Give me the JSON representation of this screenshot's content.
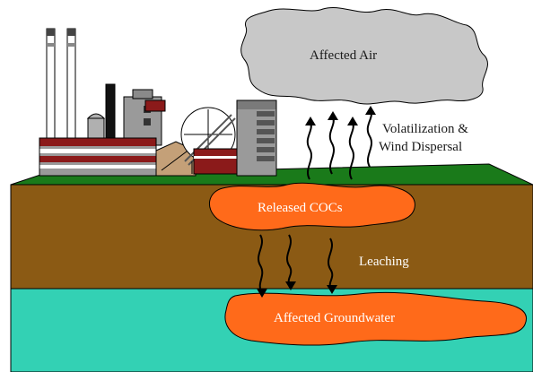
{
  "labels": {
    "affected_air": "Affected Air",
    "volatilization_line1": "Volatilization &",
    "volatilization_line2": "Wind Dispersal",
    "released_cocs": "Released COCs",
    "leaching": "Leaching",
    "affected_groundwater": "Affected Groundwater"
  },
  "colors": {
    "air_cloud": "#c8c8c8",
    "ground_surface": "#1a7a1a",
    "soil": "#8b5a14",
    "groundwater": "#33d1b4",
    "plume": "#ff6a1a",
    "factory_red": "#8b1a1a",
    "factory_gray": "#9a9a9a"
  }
}
